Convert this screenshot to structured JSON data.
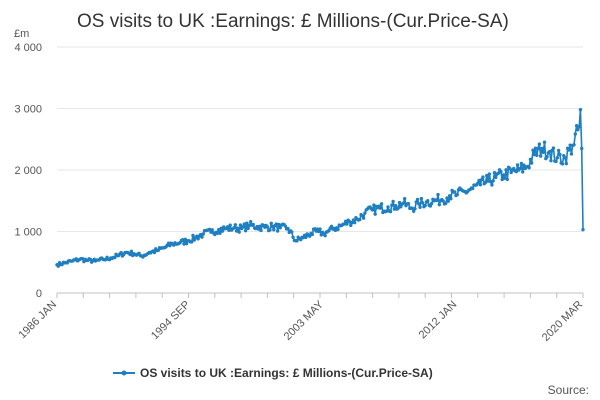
{
  "title": "OS visits to UK :Earnings: £ Millions-(Cur.Price-SA)",
  "source_label": "Source:",
  "colors": {
    "series": "#1f7fc1",
    "grid": "#e6e6e6",
    "axis": "#c0c0c0"
  },
  "chart_data": {
    "type": "line",
    "title": "OS visits to UK :Earnings: £ Millions-(Cur.Price-SA)",
    "y_unit": "£m",
    "xlabel": "",
    "ylabel": "",
    "x_range": [
      "1986 JAN",
      "2020 MAR"
    ],
    "ylim": [
      0,
      4000
    ],
    "y_ticks": [
      0,
      1000,
      2000,
      3000,
      4000
    ],
    "y_tick_labels": [
      "0",
      "1 000",
      "2 000",
      "3 000",
      "4 000"
    ],
    "x_tick_labels": [
      "1986 JAN",
      "1994 SEP",
      "2003 MAY",
      "2012 JAN",
      "2020 MAR"
    ],
    "grid": true,
    "legend_position": "bottom",
    "series": [
      {
        "name": "OS visits to UK :Earnings: £ Millions-(Cur.Price-SA)",
        "frequency": "monthly",
        "anchors": [
          [
            "1986 JAN",
            460
          ],
          [
            "1986 JUL",
            490
          ],
          [
            "1987 JAN",
            520
          ],
          [
            "1987 JUL",
            550
          ],
          [
            "1988 JAN",
            530
          ],
          [
            "1988 JUL",
            520
          ],
          [
            "1989 JAN",
            545
          ],
          [
            "1989 JUL",
            570
          ],
          [
            "1990 JAN",
            610
          ],
          [
            "1990 JUL",
            660
          ],
          [
            "1991 JAN",
            640
          ],
          [
            "1991 JUL",
            600
          ],
          [
            "1992 JAN",
            660
          ],
          [
            "1992 JUL",
            690
          ],
          [
            "1993 JAN",
            740
          ],
          [
            "1993 JUL",
            800
          ],
          [
            "1994 JAN",
            820
          ],
          [
            "1994 JUL",
            850
          ],
          [
            "1995 JAN",
            900
          ],
          [
            "1995 JUL",
            960
          ],
          [
            "1996 JAN",
            990
          ],
          [
            "1996 JUL",
            1030
          ],
          [
            "1997 JAN",
            1050
          ],
          [
            "1997 JUL",
            1060
          ],
          [
            "1998 JAN",
            1050
          ],
          [
            "1998 JUL",
            1100
          ],
          [
            "1999 JAN",
            1080
          ],
          [
            "1999 JUL",
            1070
          ],
          [
            "2000 JAN",
            1080
          ],
          [
            "2000 JUL",
            1060
          ],
          [
            "2001 JAN",
            1050
          ],
          [
            "2001 JUL",
            850
          ],
          [
            "2002 JAN",
            900
          ],
          [
            "2002 JUL",
            970
          ],
          [
            "2003 JAN",
            1000
          ],
          [
            "2003 MAY",
            960
          ],
          [
            "2003 JUL",
            990
          ],
          [
            "2004 JAN",
            1050
          ],
          [
            "2004 JUL",
            1100
          ],
          [
            "2005 JAN",
            1160
          ],
          [
            "2005 JUL",
            1200
          ],
          [
            "2006 JAN",
            1300
          ],
          [
            "2006 JUL",
            1350
          ],
          [
            "2007 JAN",
            1380
          ],
          [
            "2007 JUL",
            1400
          ],
          [
            "2008 JAN",
            1420
          ],
          [
            "2008 JUL",
            1460
          ],
          [
            "2009 JAN",
            1380
          ],
          [
            "2009 JUL",
            1450
          ],
          [
            "2010 JAN",
            1480
          ],
          [
            "2010 JUL",
            1500
          ],
          [
            "2011 JAN",
            1520
          ],
          [
            "2011 JUL",
            1580
          ],
          [
            "2012 JAN",
            1600
          ],
          [
            "2012 JUL",
            1650
          ],
          [
            "2013 JAN",
            1700
          ],
          [
            "2013 JUL",
            1760
          ],
          [
            "2014 JAN",
            1820
          ],
          [
            "2014 JUL",
            1880
          ],
          [
            "2015 JAN",
            1920
          ],
          [
            "2015 JUL",
            1960
          ],
          [
            "2016 JAN",
            2000
          ],
          [
            "2016 JUL",
            2050
          ],
          [
            "2017 JAN",
            2250
          ],
          [
            "2017 JUL",
            2350
          ],
          [
            "2018 JAN",
            2300
          ],
          [
            "2018 JUL",
            2200
          ],
          [
            "2019 JAN",
            2200
          ],
          [
            "2019 JUL",
            2400
          ],
          [
            "2019 DEC",
            2700
          ],
          [
            "2020 JAN",
            2980
          ],
          [
            "2020 FEB",
            2350
          ],
          [
            "2020 MAR",
            1030
          ]
        ]
      }
    ]
  }
}
